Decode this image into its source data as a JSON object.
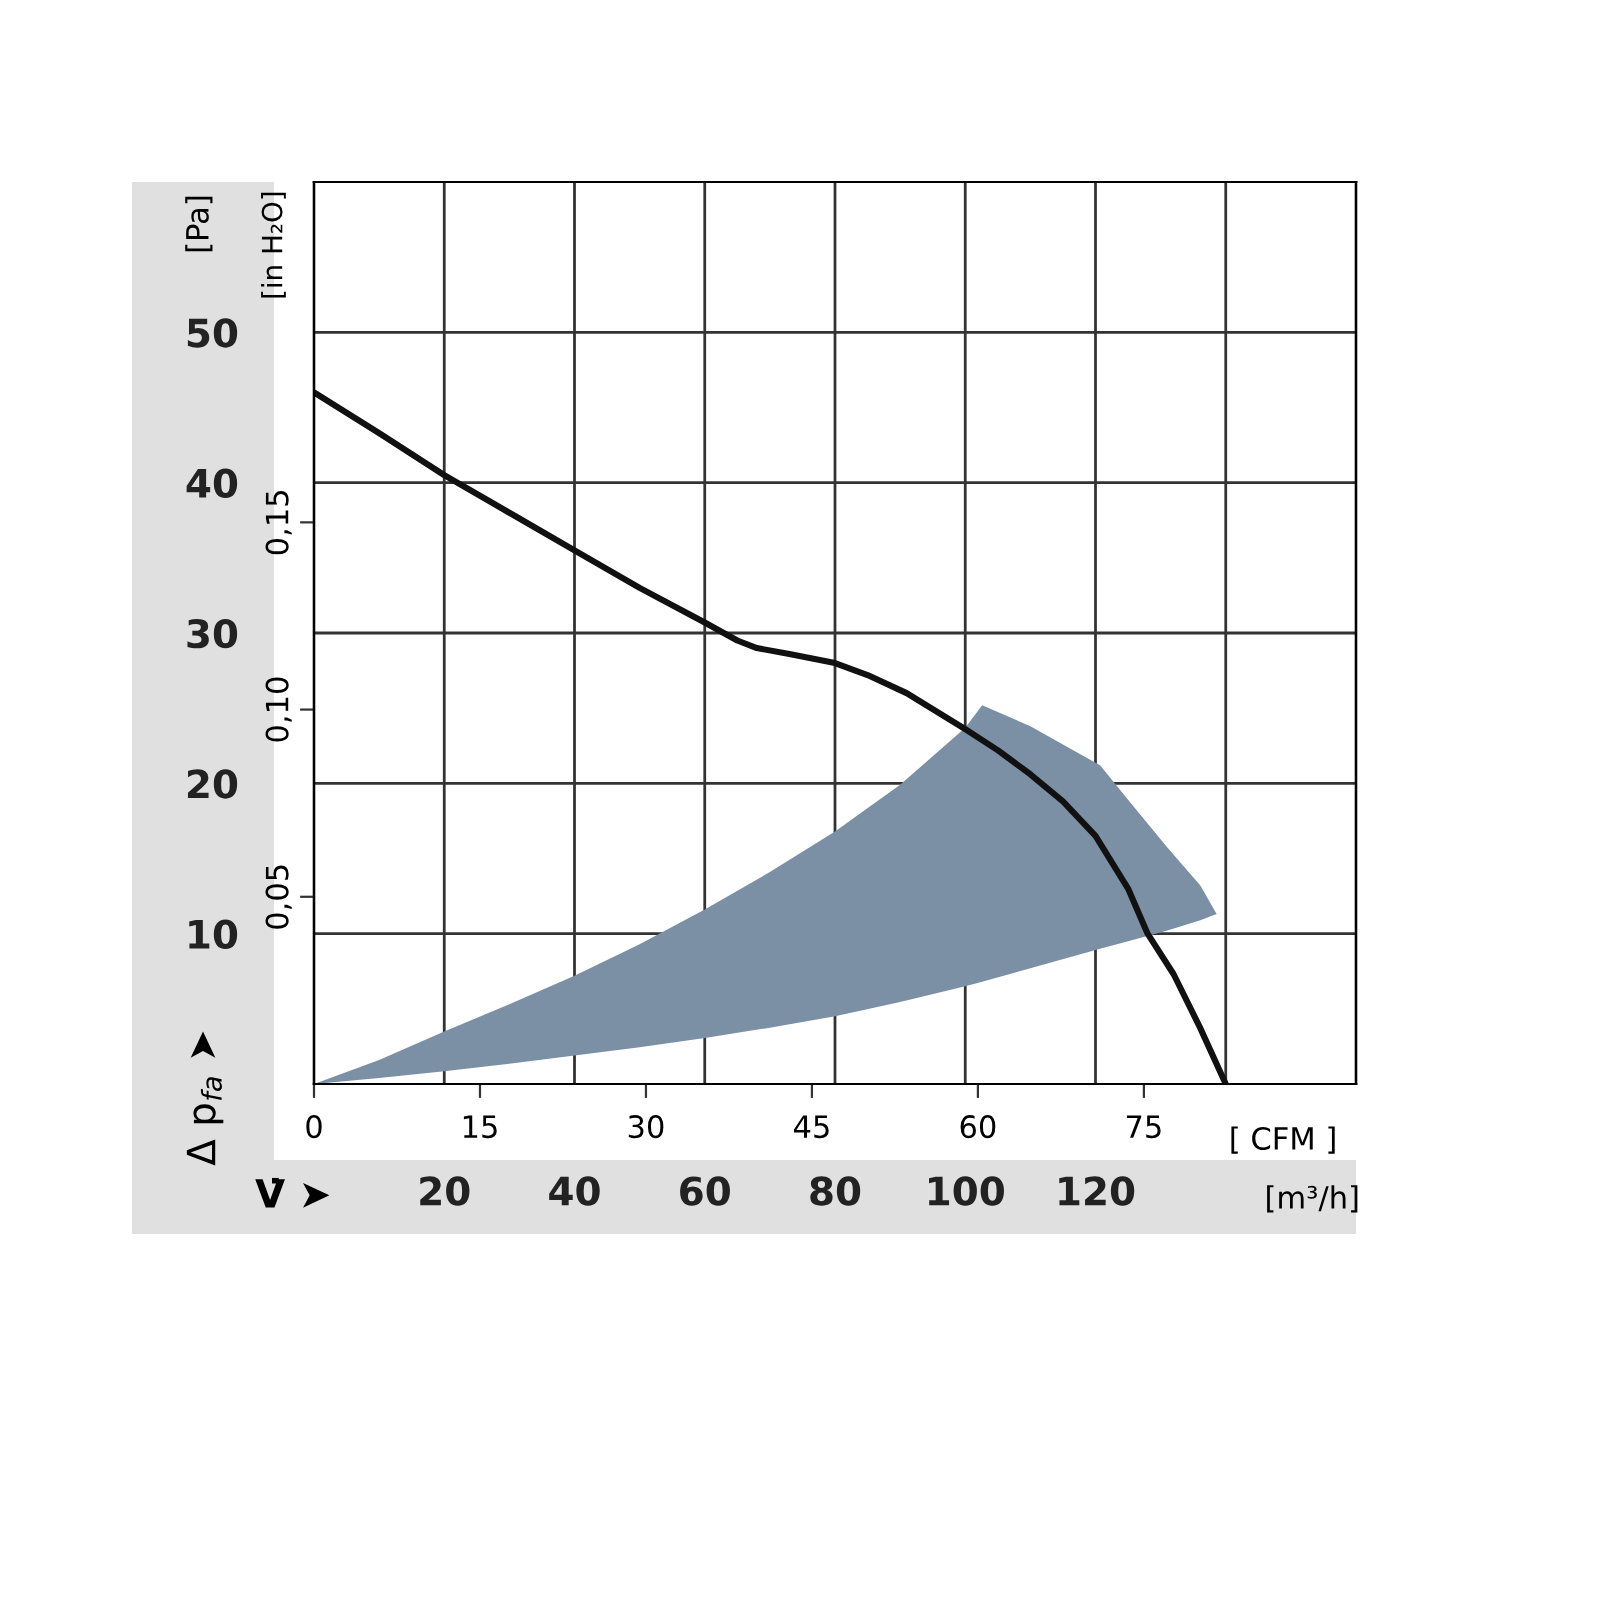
{
  "chart_data": {
    "type": "line",
    "xlabel": "V̇ ➤",
    "ylabel": "Δ p$_{fa}$ ➤",
    "x2label": "[ CFM ]",
    "y2label": "[in H₂O]",
    "annotations": [
      "[Pa]",
      "[m³/h]"
    ],
    "xlim": [
      0,
      160
    ],
    "xticks": [
      20,
      40,
      60,
      80,
      100,
      120,
      {
        "value": 140,
        "label": null
      }
    ],
    "ylim": [
      0,
      60
    ],
    "yticks": [
      10,
      20,
      30,
      40,
      50
    ],
    "x2lim": [
      0,
      94.17
    ],
    "x2ticks": [
      0,
      15,
      30,
      45,
      60,
      75
    ],
    "y2lim": [
      0,
      0.2409
    ],
    "y2ticks": [
      {
        "value": 0.05,
        "label": "0,05"
      },
      {
        "value": 0.1,
        "label": "0,10"
      },
      {
        "value": 0.15,
        "label": "0,15"
      }
    ],
    "grid": true,
    "series": [
      {
        "color": "#7b8fa5",
        "x": [
          0,
          10,
          20,
          30,
          40,
          50,
          60,
          70,
          80,
          90,
          100,
          102.6,
          110,
          120.7,
          125,
          130.9,
          136.1,
          138.6
        ],
        "values": [
          null,
          null,
          null,
          null,
          null,
          null,
          null,
          null,
          null,
          null,
          null,
          null,
          null,
          null,
          null,
          null,
          null,
          null
        ],
        "upper": [
          0,
          1.6,
          3.5,
          5.3,
          7.2,
          9.3,
          11.6,
          14.1,
          16.8,
          19.9,
          23.7,
          25.2,
          23.8,
          21.2,
          18.9,
          15.8,
          13.2,
          11.3
        ],
        "lower": [
          0,
          0.4,
          0.84,
          1.35,
          1.9,
          2.45,
          3.06,
          3.75,
          4.5,
          5.45,
          6.5,
          6.8,
          7.7,
          9.0,
          9.5,
          10.2,
          10.9,
          11.3
        ]
      },
      {
        "color": "#111111",
        "x": [
          0,
          10,
          20,
          30,
          40,
          50,
          60,
          65,
          68,
          73,
          80,
          85,
          91,
          100,
          105,
          110,
          115,
          120,
          125,
          128,
          132,
          136,
          140
        ],
        "values": [
          46.0,
          43.3,
          40.5,
          38.0,
          35.5,
          33.0,
          30.7,
          29.5,
          29.0,
          28.6,
          28.0,
          27.2,
          26.0,
          23.6,
          22.2,
          20.6,
          18.8,
          16.5,
          13.0,
          10.0,
          7.3,
          3.8,
          0
        ]
      }
    ]
  }
}
